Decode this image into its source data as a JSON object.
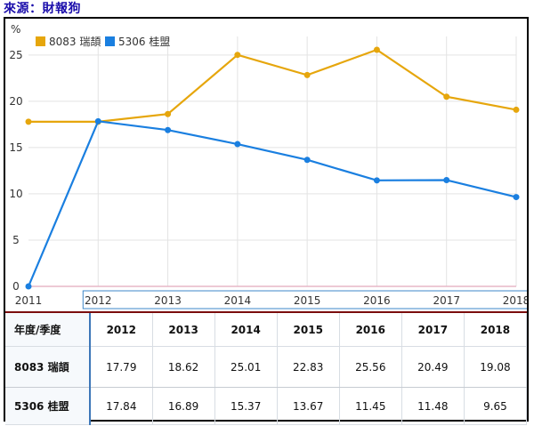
{
  "source_label": "來源：財報狗",
  "chart_data": {
    "type": "line",
    "ylabel": "%",
    "x": [
      "2011",
      "2012",
      "2013",
      "2014",
      "2015",
      "2016",
      "2017",
      "2018"
    ],
    "yticks": [
      "0",
      "5",
      "10",
      "15",
      "20",
      "25"
    ],
    "ylim": [
      0,
      27
    ],
    "grid": true,
    "legend_position": "top-left",
    "series": [
      {
        "name": "8083 瑞頡",
        "color": "#e6a60c",
        "values": [
          17.79,
          17.79,
          18.62,
          25.01,
          22.83,
          25.56,
          20.49,
          19.08
        ]
      },
      {
        "name": "5306 桂盟",
        "color": "#1a7fe0",
        "values": [
          0,
          17.84,
          16.89,
          15.37,
          13.67,
          11.45,
          11.48,
          9.65
        ]
      }
    ]
  },
  "table": {
    "corner": "年度/季度",
    "columns": [
      "2012",
      "2013",
      "2014",
      "2015",
      "2016",
      "2017",
      "2018"
    ],
    "rows": [
      {
        "label": "8083 瑞頡",
        "values": [
          "17.79",
          "18.62",
          "25.01",
          "22.83",
          "25.56",
          "20.49",
          "19.08"
        ]
      },
      {
        "label": "5306 桂盟",
        "values": [
          "17.84",
          "16.89",
          "15.37",
          "13.67",
          "11.45",
          "11.48",
          "9.65"
        ]
      }
    ]
  }
}
